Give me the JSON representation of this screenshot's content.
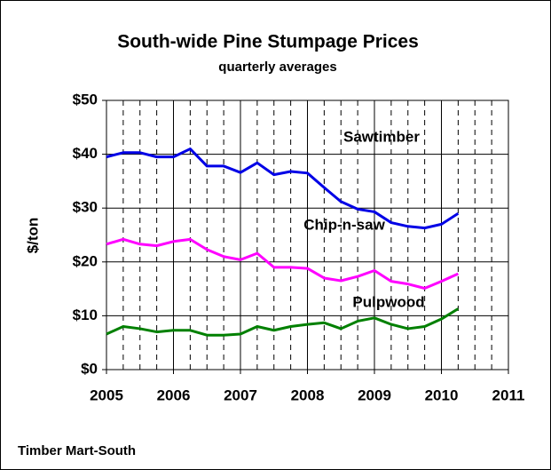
{
  "chart_data": {
    "type": "line",
    "title": "South-wide Pine Stumpage Prices",
    "subtitle": "quarterly averages",
    "y_label": "$/ton",
    "source": "Timber Mart-South",
    "x": [
      2005,
      2005.25,
      2005.5,
      2005.75,
      2006,
      2006.25,
      2006.5,
      2006.75,
      2007,
      2007.25,
      2007.5,
      2007.75,
      2008,
      2008.25,
      2008.5,
      2008.75,
      2009,
      2009.25,
      2009.5,
      2009.75,
      2010,
      2010.25
    ],
    "series": [
      {
        "name": "Sawtimber",
        "color": "#0000e6",
        "values": [
          39.5,
          40.3,
          40.3,
          39.5,
          39.5,
          41.0,
          37.8,
          37.8,
          36.6,
          38.4,
          36.2,
          36.8,
          36.5,
          33.8,
          31.2,
          29.8,
          29.3,
          27.3,
          26.6,
          26.3,
          27.0,
          29.0
        ]
      },
      {
        "name": "Chip-n-saw",
        "color": "#ff00ff",
        "values": [
          23.3,
          24.2,
          23.3,
          23.0,
          23.8,
          24.2,
          22.3,
          21.0,
          20.4,
          21.6,
          19.0,
          19.0,
          18.8,
          17.0,
          16.5,
          17.3,
          18.4,
          16.4,
          15.9,
          15.1,
          16.4,
          17.8
        ]
      },
      {
        "name": "Pulpwood",
        "color": "#008000",
        "values": [
          6.6,
          8.0,
          7.6,
          7.0,
          7.3,
          7.3,
          6.4,
          6.4,
          6.6,
          8.0,
          7.3,
          8.0,
          8.4,
          8.7,
          7.6,
          9.0,
          9.6,
          8.4,
          7.6,
          8.0,
          9.4,
          11.3
        ]
      }
    ],
    "xlim": [
      2005,
      2011
    ],
    "ylim": [
      0,
      50
    ],
    "xticks": [
      2005,
      2006,
      2007,
      2008,
      2009,
      2010,
      2011
    ],
    "yticks": [
      {
        "value": 0,
        "label": "$0"
      },
      {
        "value": 10,
        "label": "$10"
      },
      {
        "value": 20,
        "label": "$20"
      },
      {
        "value": 30,
        "label": "$30"
      },
      {
        "value": 40,
        "label": "$40"
      },
      {
        "value": 50,
        "label": "$50"
      }
    ],
    "grid": true
  }
}
